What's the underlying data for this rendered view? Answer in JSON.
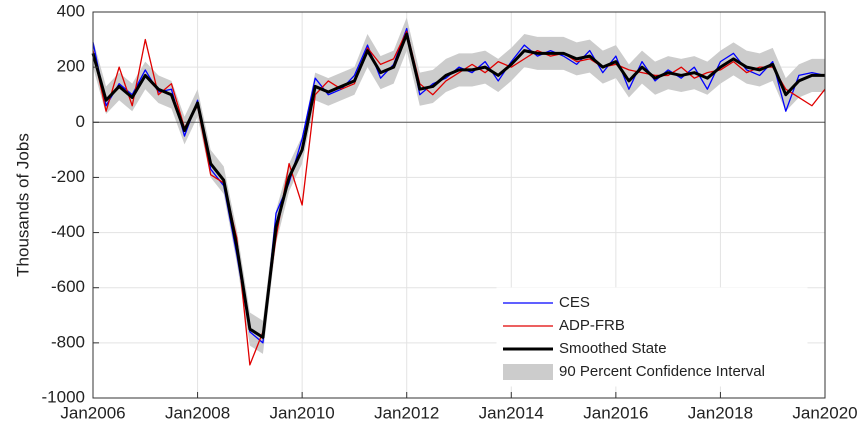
{
  "chart_data": {
    "type": "line",
    "ylabel": "Thousands of Jobs",
    "x": [
      2006,
      2006.25,
      2006.5,
      2006.75,
      2007,
      2007.25,
      2007.5,
      2007.75,
      2008,
      2008.25,
      2008.5,
      2008.75,
      2009,
      2009.25,
      2009.5,
      2009.75,
      2010,
      2010.25,
      2010.5,
      2010.75,
      2011,
      2011.25,
      2011.5,
      2011.75,
      2012,
      2012.25,
      2012.5,
      2012.75,
      2013,
      2013.25,
      2013.5,
      2013.75,
      2014,
      2014.25,
      2014.5,
      2014.75,
      2015,
      2015.25,
      2015.5,
      2015.75,
      2016,
      2016.25,
      2016.5,
      2016.75,
      2017,
      2017.25,
      2017.5,
      2017.75,
      2018,
      2018.25,
      2018.5,
      2018.75,
      2019,
      2019.25,
      2019.5,
      2019.75,
      2020
    ],
    "xlim": [
      2006,
      2020
    ],
    "xticks": [
      {
        "value": 2006,
        "label": "Jan2006"
      },
      {
        "value": 2008,
        "label": "Jan2008"
      },
      {
        "value": 2010,
        "label": "Jan2010"
      },
      {
        "value": 2012,
        "label": "Jan2012"
      },
      {
        "value": 2014,
        "label": "Jan2014"
      },
      {
        "value": 2016,
        "label": "Jan2016"
      },
      {
        "value": 2018,
        "label": "Jan2018"
      },
      {
        "value": 2020,
        "label": "Jan2020"
      }
    ],
    "ylim": [
      -1000,
      400
    ],
    "yticks": [
      -1000,
      -800,
      -600,
      -400,
      -200,
      0,
      200,
      400
    ],
    "grid": true,
    "legend": "lower right",
    "band": {
      "name": "90 Percent Confidence Interval",
      "color": "#cccccc",
      "lower": [
        200,
        30,
        80,
        40,
        120,
        70,
        50,
        -80,
        20,
        -200,
        -260,
        -510,
        -810,
        -840,
        -440,
        -250,
        -150,
        80,
        60,
        80,
        100,
        200,
        120,
        140,
        260,
        60,
        70,
        110,
        130,
        130,
        140,
        110,
        150,
        200,
        190,
        190,
        190,
        170,
        180,
        140,
        160,
        90,
        140,
        100,
        120,
        110,
        120,
        100,
        140,
        170,
        140,
        130,
        150,
        40,
        90,
        110,
        110
      ],
      "upper": [
        300,
        130,
        180,
        140,
        220,
        170,
        150,
        20,
        120,
        -100,
        -160,
        -390,
        -690,
        -720,
        -320,
        -150,
        -50,
        180,
        160,
        180,
        200,
        320,
        240,
        260,
        380,
        180,
        190,
        230,
        250,
        250,
        260,
        230,
        270,
        320,
        310,
        310,
        310,
        290,
        300,
        260,
        280,
        210,
        260,
        220,
        240,
        230,
        240,
        220,
        260,
        290,
        260,
        250,
        270,
        160,
        210,
        230,
        230
      ]
    },
    "series": [
      {
        "name": "CES",
        "color": "#0000ff",
        "values": [
          290,
          60,
          140,
          100,
          190,
          110,
          120,
          -50,
          80,
          -170,
          -230,
          -480,
          -760,
          -800,
          -330,
          -220,
          -60,
          160,
          100,
          120,
          170,
          280,
          160,
          210,
          340,
          100,
          140,
          160,
          200,
          180,
          220,
          150,
          220,
          280,
          240,
          260,
          240,
          210,
          260,
          180,
          240,
          120,
          220,
          150,
          190,
          160,
          200,
          120,
          220,
          250,
          190,
          170,
          220,
          40,
          170,
          180,
          170
        ]
      },
      {
        "name": "ADP-FRB",
        "color": "#e00000",
        "values": [
          260,
          40,
          200,
          60,
          300,
          100,
          140,
          -20,
          60,
          -190,
          -220,
          -420,
          -880,
          -760,
          -420,
          -150,
          -300,
          100,
          150,
          120,
          140,
          270,
          210,
          230,
          330,
          140,
          100,
          150,
          180,
          210,
          180,
          220,
          200,
          230,
          260,
          240,
          250,
          220,
          230,
          200,
          210,
          190,
          180,
          170,
          170,
          200,
          160,
          180,
          190,
          220,
          180,
          200,
          200,
          120,
          90,
          60,
          120
        ]
      },
      {
        "name": "Smoothed State",
        "color": "#000000",
        "width": 3,
        "values": [
          250,
          80,
          130,
          90,
          170,
          120,
          100,
          -30,
          70,
          -150,
          -210,
          -450,
          -750,
          -780,
          -380,
          -200,
          -100,
          130,
          110,
          130,
          150,
          260,
          180,
          200,
          320,
          120,
          130,
          170,
          190,
          190,
          200,
          170,
          210,
          260,
          250,
          250,
          250,
          230,
          240,
          200,
          220,
          150,
          200,
          160,
          180,
          170,
          180,
          160,
          200,
          230,
          200,
          190,
          210,
          100,
          150,
          170,
          170
        ]
      }
    ]
  }
}
